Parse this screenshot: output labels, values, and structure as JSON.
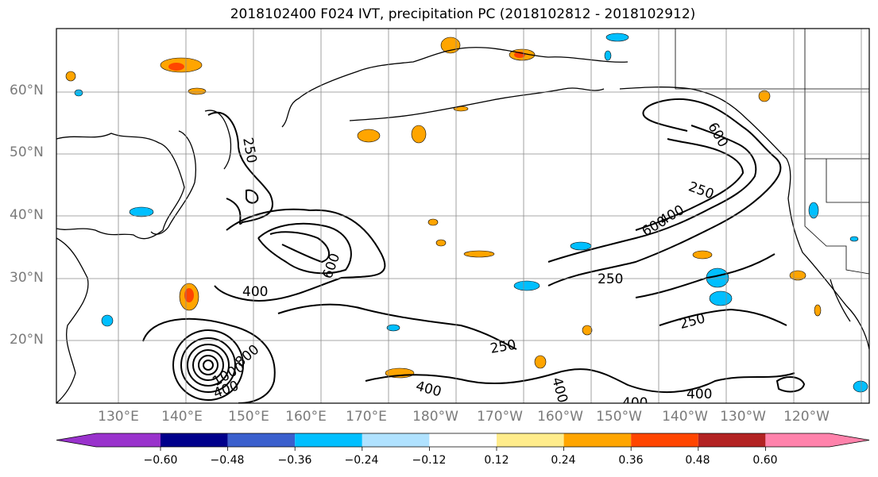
{
  "title": "2018102400 F024 IVT, precipitation PC (2018102812 - 2018102912)",
  "map": {
    "lat_labels": [
      "60°N",
      "50°N",
      "40°N",
      "30°N",
      "20°N"
    ],
    "lon_labels": [
      "130°E",
      "140°E",
      "150°E",
      "160°E",
      "170°E",
      "180°W",
      "170°W",
      "160°W",
      "150°W",
      "140°W",
      "130°W",
      "120°W"
    ],
    "ivt_contour_levels": [
      "250",
      "400",
      "600",
      "800",
      "1000"
    ],
    "contour_labels": [
      {
        "text": "250",
        "rotate": 80
      },
      {
        "text": "400",
        "rotate": 0
      },
      {
        "text": "600",
        "rotate": -70
      },
      {
        "text": "400",
        "rotate": -20
      },
      {
        "text": "800",
        "rotate": -40
      },
      {
        "text": "1000",
        "rotate": -30
      },
      {
        "text": "250",
        "rotate": -10
      },
      {
        "text": "400",
        "rotate": 15
      },
      {
        "text": "400",
        "rotate": 75
      },
      {
        "text": "400",
        "rotate": 0
      },
      {
        "text": "400",
        "rotate": 0
      },
      {
        "text": "250",
        "rotate": 0
      },
      {
        "text": "250",
        "rotate": -15
      },
      {
        "text": "250",
        "rotate": 20
      },
      {
        "text": "600",
        "rotate": -30
      },
      {
        "text": "400",
        "rotate": -30
      },
      {
        "text": "600",
        "rotate": 60
      }
    ]
  },
  "colorbar": {
    "tick_labels": [
      "−0.60",
      "−0.48",
      "−0.36",
      "−0.24",
      "−0.12",
      "0.12",
      "0.24",
      "0.36",
      "0.48",
      "0.60"
    ],
    "colors": [
      "#9932cc",
      "#00008b",
      "#3a5fcd",
      "#00bfff",
      "#b0e2ff",
      "#ffffff",
      "#ffec8b",
      "#ffa500",
      "#ff4500",
      "#b22222",
      "#ff82ab"
    ]
  }
}
